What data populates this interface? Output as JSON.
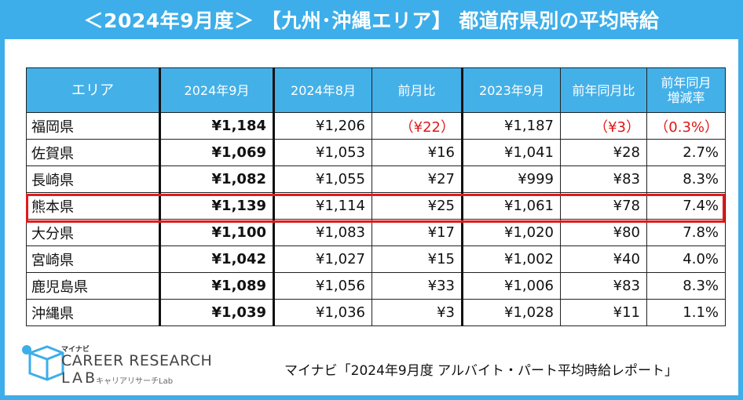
{
  "title": "＜2024年9月度＞ 【九州･沖縄エリア】 都道府県別の平均時給",
  "table": {
    "headers": [
      "エリア",
      "2024年9月",
      "2024年8月",
      "前月比",
      "2023年9月",
      "前年同月比",
      "前年同月\n増減率"
    ],
    "rows": [
      [
        "福岡県",
        "¥1,184",
        "¥1,206",
        "（¥22）",
        "¥1,187",
        "（¥3）",
        "（0.3%）"
      ],
      [
        "佐賀県",
        "¥1,069",
        "¥1,053",
        "¥16",
        "¥1,041",
        "¥28",
        "2.7%"
      ],
      [
        "長崎県",
        "¥1,082",
        "¥1,055",
        "¥27",
        "¥999",
        "¥83",
        "8.3%"
      ],
      [
        "熊本県",
        "¥1,139",
        "¥1,114",
        "¥25",
        "¥1,061",
        "¥78",
        "7.4%"
      ],
      [
        "大分県",
        "¥1,100",
        "¥1,083",
        "¥17",
        "¥1,020",
        "¥80",
        "7.8%"
      ],
      [
        "宮崎県",
        "¥1,042",
        "¥1,027",
        "¥15",
        "¥1,002",
        "¥40",
        "4.0%"
      ],
      [
        "鹿児島県",
        "¥1,089",
        "¥1,056",
        "¥33",
        "¥1,006",
        "¥83",
        "8.3%"
      ],
      [
        "沖縄県",
        "¥1,039",
        "¥1,036",
        "¥3",
        "¥1,028",
        "¥11",
        "1.1%"
      ]
    ],
    "highlighted_row": "熊本県",
    "negative_color": "#e01818"
  },
  "logo": {
    "brand": "マイナビ",
    "name": "CAREER RESEARCH",
    "lab": "LAB",
    "sub": "キャリアリサーチLab"
  },
  "source": "マイナビ「2024年9月度 アルバイト・パート平均時給レポート」",
  "colors": {
    "accent": "#3daee9",
    "header": "#44b0e8",
    "highlight_border": "#e01b1b"
  }
}
